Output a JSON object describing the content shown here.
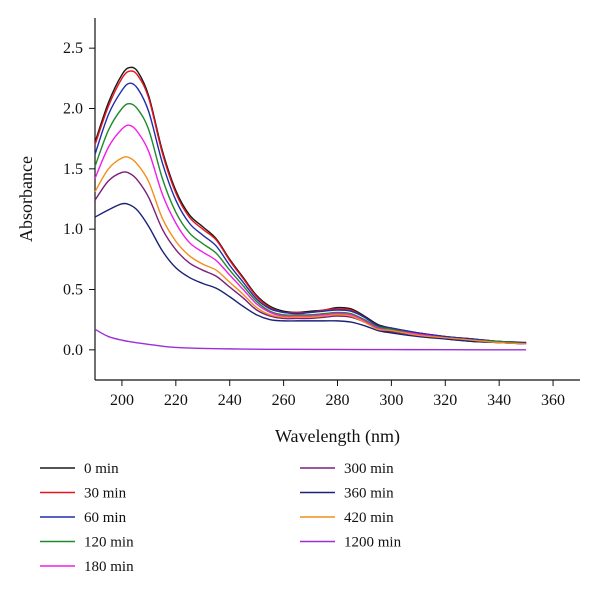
{
  "chart_data": {
    "type": "line",
    "title": "",
    "xlabel": "Wavelength (nm)",
    "ylabel": "Absorbance",
    "xlim": [
      190,
      370
    ],
    "ylim": [
      -0.25,
      2.75
    ],
    "xticks": [
      200,
      220,
      240,
      260,
      280,
      300,
      320,
      340,
      360
    ],
    "yticks": [
      0.0,
      0.5,
      1.0,
      1.5,
      2.0,
      2.5
    ],
    "grid": false,
    "legend_position": "bottom",
    "series": [
      {
        "name": "0 min",
        "color": "#1a1a1a",
        "x": [
          190,
          195,
          200,
          203,
          206,
          210,
          215,
          220,
          225,
          230,
          235,
          240,
          245,
          250,
          255,
          260,
          265,
          270,
          275,
          280,
          285,
          290,
          295,
          300,
          310,
          320,
          330,
          340,
          350
        ],
        "y": [
          1.72,
          2.05,
          2.28,
          2.34,
          2.3,
          2.1,
          1.65,
          1.32,
          1.12,
          1.02,
          0.92,
          0.75,
          0.6,
          0.45,
          0.36,
          0.32,
          0.31,
          0.32,
          0.33,
          0.35,
          0.34,
          0.28,
          0.21,
          0.18,
          0.14,
          0.11,
          0.09,
          0.07,
          0.06
        ]
      },
      {
        "name": "30 min",
        "color": "#e8141c",
        "x": [
          190,
          195,
          200,
          203,
          206,
          210,
          215,
          220,
          225,
          230,
          235,
          240,
          245,
          250,
          255,
          260,
          265,
          270,
          275,
          280,
          285,
          290,
          295,
          300,
          310,
          320,
          330,
          340,
          350
        ],
        "y": [
          1.7,
          2.02,
          2.25,
          2.31,
          2.27,
          2.08,
          1.63,
          1.3,
          1.1,
          1.0,
          0.91,
          0.74,
          0.59,
          0.44,
          0.35,
          0.31,
          0.31,
          0.31,
          0.33,
          0.34,
          0.33,
          0.27,
          0.2,
          0.18,
          0.14,
          0.11,
          0.09,
          0.07,
          0.06
        ]
      },
      {
        "name": "60 min",
        "color": "#1f2fa8",
        "x": [
          190,
          195,
          200,
          203,
          206,
          210,
          215,
          220,
          225,
          230,
          235,
          240,
          245,
          250,
          255,
          260,
          265,
          270,
          275,
          280,
          285,
          290,
          295,
          300,
          310,
          320,
          330,
          340,
          350
        ],
        "y": [
          1.62,
          1.95,
          2.15,
          2.21,
          2.16,
          1.97,
          1.55,
          1.24,
          1.05,
          0.95,
          0.86,
          0.7,
          0.56,
          0.42,
          0.34,
          0.31,
          0.3,
          0.31,
          0.32,
          0.33,
          0.32,
          0.27,
          0.2,
          0.18,
          0.14,
          0.11,
          0.09,
          0.07,
          0.06
        ]
      },
      {
        "name": "120 min",
        "color": "#1f8a2a",
        "x": [
          190,
          195,
          200,
          203,
          206,
          210,
          215,
          220,
          225,
          230,
          235,
          240,
          245,
          250,
          255,
          260,
          265,
          270,
          275,
          280,
          285,
          290,
          295,
          300,
          310,
          320,
          330,
          340,
          350
        ],
        "y": [
          1.52,
          1.82,
          2.0,
          2.04,
          1.99,
          1.82,
          1.42,
          1.14,
          0.97,
          0.88,
          0.8,
          0.66,
          0.53,
          0.4,
          0.32,
          0.29,
          0.29,
          0.29,
          0.3,
          0.31,
          0.3,
          0.25,
          0.19,
          0.17,
          0.13,
          0.1,
          0.08,
          0.07,
          0.05
        ]
      },
      {
        "name": "180 min",
        "color": "#f01ee8",
        "x": [
          190,
          195,
          200,
          203,
          206,
          210,
          215,
          220,
          225,
          230,
          235,
          240,
          245,
          250,
          255,
          260,
          265,
          270,
          275,
          280,
          285,
          290,
          295,
          300,
          310,
          320,
          330,
          340,
          350
        ],
        "y": [
          1.42,
          1.68,
          1.83,
          1.86,
          1.8,
          1.64,
          1.29,
          1.05,
          0.89,
          0.81,
          0.74,
          0.62,
          0.5,
          0.38,
          0.31,
          0.28,
          0.28,
          0.28,
          0.29,
          0.3,
          0.29,
          0.24,
          0.18,
          0.16,
          0.13,
          0.1,
          0.08,
          0.06,
          0.05
        ]
      },
      {
        "name": "300 min",
        "color": "#7b1f7d",
        "x": [
          190,
          195,
          200,
          203,
          206,
          210,
          215,
          220,
          225,
          230,
          235,
          240,
          245,
          250,
          255,
          260,
          265,
          270,
          275,
          280,
          285,
          290,
          295,
          300,
          310,
          320,
          330,
          340,
          350
        ],
        "y": [
          1.24,
          1.4,
          1.47,
          1.46,
          1.4,
          1.26,
          1.0,
          0.83,
          0.72,
          0.66,
          0.61,
          0.52,
          0.43,
          0.33,
          0.28,
          0.26,
          0.26,
          0.26,
          0.27,
          0.28,
          0.27,
          0.23,
          0.17,
          0.15,
          0.12,
          0.09,
          0.07,
          0.06,
          0.05
        ]
      },
      {
        "name": "360 min",
        "color": "#1a2278",
        "x": [
          190,
          195,
          200,
          203,
          206,
          210,
          215,
          220,
          225,
          230,
          235,
          240,
          245,
          250,
          255,
          260,
          265,
          270,
          275,
          280,
          285,
          290,
          295,
          300,
          310,
          320,
          330,
          340,
          350
        ],
        "y": [
          1.1,
          1.16,
          1.21,
          1.2,
          1.15,
          1.02,
          0.82,
          0.68,
          0.6,
          0.55,
          0.51,
          0.44,
          0.36,
          0.29,
          0.25,
          0.24,
          0.24,
          0.24,
          0.24,
          0.24,
          0.23,
          0.2,
          0.16,
          0.14,
          0.11,
          0.09,
          0.07,
          0.06,
          0.05
        ]
      },
      {
        "name": "420 min",
        "color": "#f28e1c",
        "x": [
          190,
          195,
          200,
          203,
          206,
          210,
          215,
          220,
          225,
          230,
          235,
          240,
          245,
          250,
          255,
          260,
          265,
          270,
          275,
          280,
          285,
          290,
          295,
          300,
          310,
          320,
          330,
          340,
          350
        ],
        "y": [
          1.31,
          1.5,
          1.59,
          1.59,
          1.53,
          1.39,
          1.09,
          0.9,
          0.78,
          0.71,
          0.66,
          0.56,
          0.46,
          0.35,
          0.29,
          0.27,
          0.27,
          0.27,
          0.28,
          0.29,
          0.28,
          0.23,
          0.17,
          0.16,
          0.12,
          0.1,
          0.08,
          0.06,
          0.05
        ]
      },
      {
        "name": "1200 min",
        "color": "#9b2fd8",
        "x": [
          190,
          195,
          200,
          205,
          210,
          215,
          220,
          230,
          240,
          250,
          260,
          280,
          300,
          320,
          350
        ],
        "y": [
          0.17,
          0.11,
          0.08,
          0.06,
          0.045,
          0.03,
          0.02,
          0.012,
          0.008,
          0.005,
          0.004,
          0.003,
          0.002,
          0.001,
          0.0
        ]
      }
    ]
  }
}
